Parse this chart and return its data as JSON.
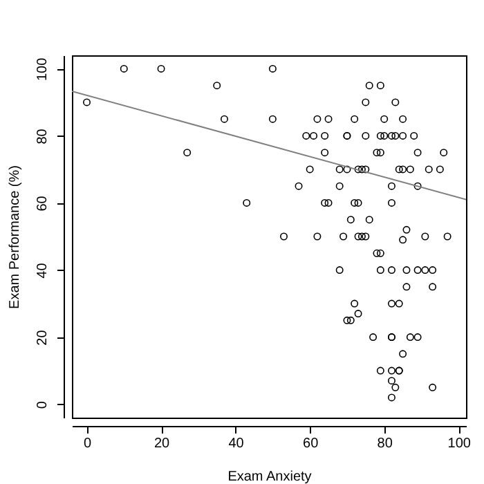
{
  "chart_data": {
    "type": "scatter",
    "xlabel": "Exam Anxiety",
    "ylabel": "Exam Performance (%)",
    "xlim": [
      -4,
      102
    ],
    "ylim": [
      -4,
      104
    ],
    "xticks": [
      0,
      20,
      40,
      60,
      80,
      100
    ],
    "yticks": [
      0,
      20,
      40,
      60,
      80,
      100
    ],
    "grid": false,
    "series": [
      {
        "marker": "circle",
        "color": "#000000",
        "x": [
          0,
          10,
          20,
          35,
          37,
          27,
          43,
          50,
          50,
          76,
          79,
          75,
          83,
          62,
          65,
          72,
          80,
          85,
          59,
          61,
          64,
          70,
          70,
          75,
          79,
          80,
          82,
          83,
          85,
          88,
          64,
          78,
          79,
          89,
          96,
          60,
          68,
          70,
          73,
          74,
          75,
          84,
          85,
          87,
          92,
          95,
          57,
          68,
          82,
          89,
          64,
          65,
          72,
          73,
          82,
          71,
          76,
          86,
          53,
          62,
          69,
          73,
          74,
          75,
          85,
          91,
          97,
          78,
          79,
          68,
          79,
          82,
          86,
          89,
          91,
          93,
          86,
          93,
          72,
          82,
          84,
          73,
          70,
          71,
          77,
          82,
          82,
          87,
          89,
          85,
          79,
          82,
          84,
          84,
          82,
          83,
          93,
          82
        ],
        "values": [
          90,
          100,
          100,
          95,
          85,
          75,
          60,
          100,
          85,
          95,
          95,
          90,
          90,
          85,
          85,
          85,
          85,
          85,
          80,
          80,
          80,
          80,
          80,
          80,
          80,
          80,
          80,
          80,
          80,
          80,
          75,
          75,
          75,
          75,
          75,
          70,
          70,
          70,
          70,
          70,
          70,
          70,
          70,
          70,
          70,
          70,
          65,
          65,
          65,
          65,
          60,
          60,
          60,
          60,
          60,
          55,
          55,
          52,
          50,
          50,
          50,
          50,
          50,
          50,
          49,
          50,
          50,
          45,
          45,
          40,
          40,
          40,
          40,
          40,
          40,
          40,
          35,
          35,
          30,
          30,
          30,
          27,
          25,
          25,
          20,
          20,
          20,
          20,
          20,
          15,
          10,
          10,
          10,
          10,
          7,
          5,
          5,
          2
        ]
      },
      {
        "type": "line",
        "color": "#808080",
        "x": [
          -4,
          102
        ],
        "values": [
          93.3,
          61.0
        ]
      }
    ]
  }
}
